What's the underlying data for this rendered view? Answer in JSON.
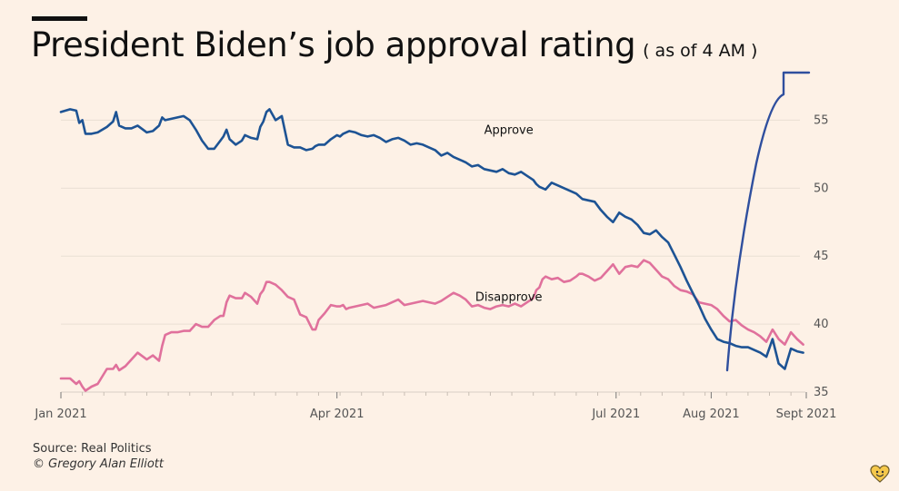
{
  "title": "President Biden’s job approval rating",
  "subtitle": "( as of 4 AM )",
  "source": "Source: Real Politics",
  "credit": "© Gregory Alan Elliott",
  "colors": {
    "background": "#fdf1e6",
    "approve": "#1d5394",
    "disapprove": "#e0719c",
    "grid": "#eadfd4",
    "tick_text": "#555555"
  },
  "chart_data": {
    "type": "line",
    "title": "President Biden’s job approval rating",
    "subtitle": "( as of 4 AM )",
    "x_unit": "days since Jan 1 2021",
    "xlim": [
      0,
      243
    ],
    "ylim": [
      35,
      58.5
    ],
    "grid": "horizontal",
    "y_ticks": [
      35,
      40,
      45,
      50,
      55
    ],
    "x_ticks": [
      {
        "label": "Jan 2021",
        "x": 0
      },
      {
        "label": "Apr 2021",
        "x": 90
      },
      {
        "label": "Jul 2021",
        "x": 181
      },
      {
        "label": "Aug 2021",
        "x": 212
      },
      {
        "label": "Sept 2021",
        "x": 243
      }
    ],
    "series": [
      {
        "name": "Approve",
        "label": "Approve",
        "color": "#1d5394",
        "label_at": {
          "x": 146,
          "y": 54.0
        },
        "x": [
          0,
          3,
          5,
          6,
          7,
          8,
          10,
          12,
          15,
          17,
          18,
          19,
          21,
          23,
          25,
          28,
          30,
          32,
          33,
          34,
          36,
          38,
          40,
          42,
          44,
          46,
          48,
          50,
          52,
          53,
          54,
          55,
          57,
          59,
          60,
          62,
          64,
          65,
          66,
          67,
          68,
          70,
          72,
          74,
          76,
          78,
          80,
          82,
          83,
          84,
          86,
          88,
          90,
          91,
          92,
          93,
          94,
          96,
          98,
          100,
          102,
          104,
          106,
          108,
          110,
          112,
          114,
          116,
          118,
          120,
          122,
          124,
          126,
          128,
          130,
          132,
          134,
          136,
          138,
          140,
          142,
          144,
          146,
          148,
          150,
          152,
          154,
          155,
          156,
          157,
          158,
          160,
          162,
          164,
          166,
          168,
          169,
          170,
          172,
          174,
          176,
          178,
          180,
          182,
          184,
          186,
          188,
          190,
          192,
          194,
          196,
          198,
          200,
          202,
          204,
          206,
          208,
          210,
          212,
          214,
          216,
          218,
          220,
          222,
          224,
          226,
          228,
          230,
          232,
          234,
          236,
          238,
          240,
          242
        ],
        "values": [
          55.6,
          55.8,
          55.7,
          54.8,
          55.0,
          54.0,
          54.0,
          54.1,
          54.5,
          54.9,
          55.6,
          54.6,
          54.4,
          54.4,
          54.6,
          54.1,
          54.2,
          54.6,
          55.2,
          55.0,
          55.1,
          55.2,
          55.3,
          55.0,
          54.3,
          53.5,
          52.9,
          52.9,
          53.5,
          53.8,
          54.3,
          53.6,
          53.2,
          53.5,
          53.9,
          53.7,
          53.6,
          54.5,
          54.9,
          55.6,
          55.8,
          55.0,
          55.3,
          53.2,
          53.0,
          53.0,
          52.8,
          52.9,
          53.1,
          53.2,
          53.2,
          53.6,
          53.9,
          53.8,
          54.0,
          54.1,
          54.2,
          54.1,
          53.9,
          53.8,
          53.9,
          53.7,
          53.4,
          53.6,
          53.7,
          53.5,
          53.2,
          53.3,
          53.2,
          53.0,
          52.8,
          52.4,
          52.6,
          52.3,
          52.1,
          51.9,
          51.6,
          51.7,
          51.4,
          51.3,
          51.2,
          51.4,
          51.1,
          51.0,
          51.2,
          50.9,
          50.6,
          50.3,
          50.1,
          50.0,
          49.9,
          50.4,
          50.2,
          50.0,
          49.8,
          49.6,
          49.4,
          49.2,
          49.1,
          49.0,
          48.4,
          47.9,
          47.5,
          48.2,
          47.9,
          47.7,
          47.3,
          46.7,
          46.6,
          46.9,
          46.4,
          46.0,
          45.1,
          44.2,
          43.2,
          42.3,
          41.4,
          40.4,
          39.6,
          38.9,
          38.7,
          38.6,
          38.4,
          38.3,
          38.3,
          38.1,
          37.9,
          37.6,
          38.9,
          37.1,
          36.7,
          38.2,
          38.0,
          37.9
        ]
      },
      {
        "name": "Disapprove",
        "label": "Disapprove",
        "color": "#e0719c",
        "label_at": {
          "x": 146,
          "y": 41.7
        },
        "x": [
          0,
          3,
          5,
          6,
          7,
          8,
          10,
          12,
          15,
          17,
          18,
          19,
          21,
          23,
          25,
          28,
          30,
          32,
          33,
          34,
          36,
          38,
          40,
          42,
          44,
          46,
          48,
          50,
          52,
          53,
          54,
          55,
          57,
          59,
          60,
          62,
          64,
          65,
          66,
          67,
          68,
          70,
          72,
          74,
          76,
          78,
          80,
          82,
          83,
          84,
          86,
          88,
          90,
          91,
          92,
          93,
          94,
          96,
          98,
          100,
          102,
          104,
          106,
          108,
          110,
          112,
          114,
          116,
          118,
          120,
          122,
          124,
          126,
          128,
          130,
          132,
          134,
          136,
          138,
          140,
          142,
          144,
          146,
          148,
          150,
          152,
          154,
          155,
          156,
          157,
          158,
          160,
          162,
          164,
          166,
          168,
          169,
          170,
          172,
          174,
          176,
          178,
          180,
          182,
          184,
          186,
          188,
          190,
          192,
          194,
          196,
          198,
          200,
          202,
          204,
          206,
          208,
          210,
          212,
          214,
          216,
          218,
          220,
          222,
          224,
          226,
          228,
          230,
          232,
          234,
          236,
          238,
          240,
          242
        ],
        "values": [
          36.0,
          36.0,
          35.6,
          35.8,
          35.4,
          35.1,
          35.4,
          35.6,
          36.7,
          36.7,
          37.0,
          36.6,
          36.9,
          37.4,
          37.9,
          37.4,
          37.7,
          37.3,
          38.4,
          39.2,
          39.4,
          39.4,
          39.5,
          39.5,
          40.0,
          39.8,
          39.8,
          40.3,
          40.6,
          40.6,
          41.6,
          42.1,
          41.9,
          41.9,
          42.3,
          42.0,
          41.5,
          42.2,
          42.5,
          43.1,
          43.1,
          42.9,
          42.5,
          42.0,
          41.8,
          40.7,
          40.5,
          39.6,
          39.6,
          40.3,
          40.8,
          41.4,
          41.3,
          41.3,
          41.4,
          41.1,
          41.2,
          41.3,
          41.4,
          41.5,
          41.2,
          41.3,
          41.4,
          41.6,
          41.8,
          41.4,
          41.5,
          41.6,
          41.7,
          41.6,
          41.5,
          41.7,
          42.0,
          42.3,
          42.1,
          41.8,
          41.3,
          41.4,
          41.2,
          41.1,
          41.3,
          41.4,
          41.3,
          41.5,
          41.3,
          41.6,
          41.9,
          42.5,
          42.7,
          43.3,
          43.5,
          43.3,
          43.4,
          43.1,
          43.2,
          43.5,
          43.7,
          43.7,
          43.5,
          43.2,
          43.4,
          43.9,
          44.4,
          43.7,
          44.2,
          44.3,
          44.2,
          44.7,
          44.5,
          44.0,
          43.5,
          43.3,
          42.8,
          42.5,
          42.4,
          42.2,
          41.6,
          41.5,
          41.4,
          41.1,
          40.6,
          40.2,
          40.3,
          39.9,
          39.6,
          39.4,
          39.1,
          38.7,
          39.6,
          38.9,
          38.5,
          39.4,
          38.9,
          38.5
        ]
      }
    ]
  }
}
